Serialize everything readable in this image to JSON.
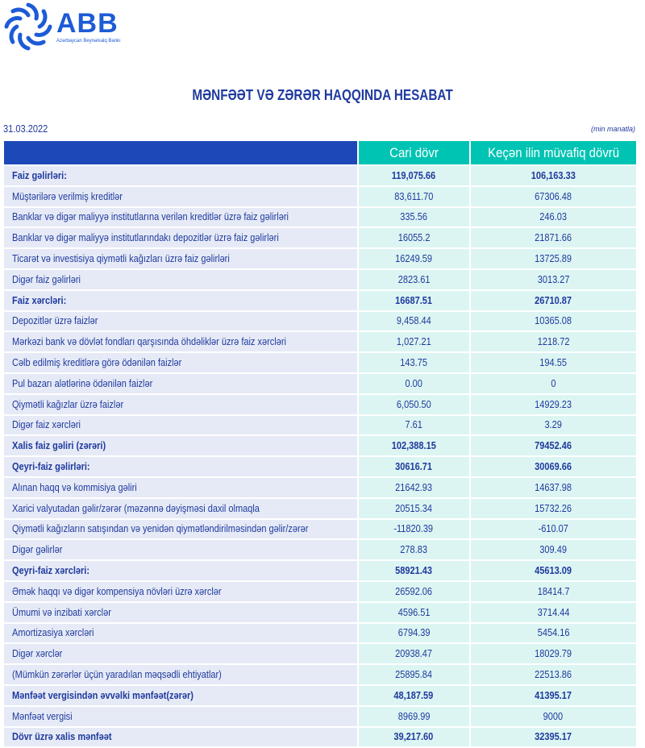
{
  "logo": {
    "name": "ABB",
    "subtitle": "Azərbaycan Beynəlxalq Bankı",
    "color": "#1d5bd6"
  },
  "title": "MƏNFƏƏT VƏ ZƏRƏR HAQQINDA HESABAT",
  "date": "31.03.2022",
  "unit": "(min manatla)",
  "columns": [
    "",
    "Cari dövr",
    "Keçən ilin müvafiq dövrü"
  ],
  "rows": [
    {
      "label": "Faiz gəlirləri:",
      "cur": "119,075.66",
      "prev": "106,163.33",
      "bold": true
    },
    {
      "label": "Müştərilərə verilmiş kreditlər",
      "cur": "83,611.70",
      "prev": "67306.48"
    },
    {
      "label": "Banklar və digər maliyyə institutlarına verilən kreditlər üzrə faiz gəlirləri",
      "cur": "335.56",
      "prev": "246.03"
    },
    {
      "label": "Banklar və digər maliyyə institutlarındakı depozitlər üzrə faiz gəlirləri",
      "cur": "16055.2",
      "prev": "21871.66"
    },
    {
      "label": "Ticarət və investisiya qiymətli kağızları üzrə faiz gəlirləri",
      "cur": "16249.59",
      "prev": "13725.89"
    },
    {
      "label": "Digər faiz gəlirləri",
      "cur": "2823.61",
      "prev": "3013.27"
    },
    {
      "label": "Faiz xərcləri:",
      "cur": "16687.51",
      "prev": "26710.87",
      "bold": true
    },
    {
      "label": "Depozitlər üzrə faizlər",
      "cur": "9,458.44",
      "prev": "10365.08"
    },
    {
      "label": "Mərkəzi bank və dövlət fondları qarşısında öhdəliklər üzrə faiz xərcləri",
      "cur": "1,027.21",
      "prev": "1218.72"
    },
    {
      "label": "Cəlb edilmiş kreditlərə görə ödənilən faizlər",
      "cur": "143.75",
      "prev": "194.55"
    },
    {
      "label": "Pul bazarı alətlərinə ödənilən faizlər",
      "cur": "0.00",
      "prev": "0"
    },
    {
      "label": "Qiymətli kağızlar üzrə faizlər",
      "cur": "6,050.50",
      "prev": "14929.23"
    },
    {
      "label": "Digər faiz xərcləri",
      "cur": "7.61",
      "prev": "3.29"
    },
    {
      "label": "Xalis faiz gəliri (zərəri)",
      "cur": "102,388.15",
      "prev": "79452.46",
      "bold": true
    },
    {
      "label": "Qeyri-faiz gəlirləri:",
      "cur": "30616.71",
      "prev": "30069.66",
      "bold": true
    },
    {
      "label": "Alınan haqq və kommisiya gəliri",
      "cur": "21642.93",
      "prev": "14637.98"
    },
    {
      "label": "Xarici valyutadan gəlir/zərər (məzənnə dəyişməsi daxil olmaqla",
      "cur": "20515.34",
      "prev": "15732.26"
    },
    {
      "label": "Qiymətli kağızların satışından və yenidən qiymətləndirilməsindən gəlir/zərər",
      "cur": "-11820.39",
      "prev": "-610.07"
    },
    {
      "label": "Digər gəlirlər",
      "cur": "278.83",
      "prev": "309.49"
    },
    {
      "label": "Qeyri-faiz xərcləri:",
      "cur": "58921.43",
      "prev": "45613.09",
      "bold": true
    },
    {
      "label": "Əmək haqqı və digər kompensiya növləri üzrə xərclər",
      "cur": "26592.06",
      "prev": "18414.7"
    },
    {
      "label": "Ümumi və inzibati xərclər",
      "cur": "4596.51",
      "prev": "3714.44"
    },
    {
      "label": "Amortizasiya xərcləri",
      "cur": "6794.39",
      "prev": "5454.16"
    },
    {
      "label": "Digər xərclər",
      "cur": "20938.47",
      "prev": "18029.79"
    },
    {
      "label": "(Mümkün zərərlər üçün yaradılan məqsədli ehtiyatlar)",
      "cur": "25895.84",
      "prev": "22513.86"
    },
    {
      "label": "Mənfəət vergisindən əvvəlki mənfəət(zərər)",
      "cur": "48,187.59",
      "prev": "41395.17",
      "bold": true
    },
    {
      "label": "Mənfəət vergisi",
      "cur": "8969.99",
      "prev": "9000"
    },
    {
      "label": "Dövr üzrə xalis mənfəət",
      "cur": "39,217.60",
      "prev": "32395.17",
      "bold": true
    }
  ],
  "colors": {
    "header_blue": "#1c48b8",
    "header_teal": "#00c4b3",
    "label_bg": "#e6eaf6",
    "value_bg": "#dcf5f2",
    "text": "#1f3a9e"
  }
}
